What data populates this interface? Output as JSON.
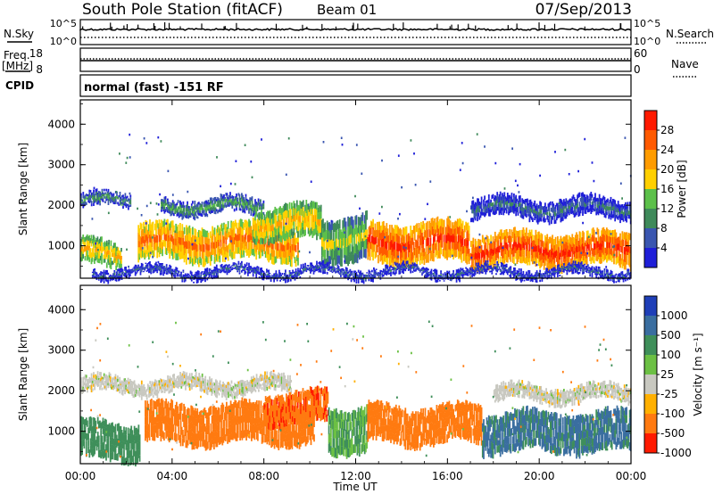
{
  "header": {
    "station": "South Pole Station (fitACF)",
    "beam": "Beam 01",
    "date": "07/Sep/2013"
  },
  "top_panels": {
    "nsky_label": "N.Sky",
    "nsky_ticks": [
      "10^5",
      "10^0"
    ],
    "nsearch_label": "N.Search",
    "nsearch_ticks": [
      "10^5",
      "10^0"
    ],
    "freq_label": "Freq.",
    "freq_unit": "[MHz]",
    "freq_ticks": [
      "18",
      "8"
    ],
    "nave_label": "Nave",
    "nave_ticks": [
      "60",
      "0"
    ],
    "cpid_label": "CPID",
    "cpid_text": "normal (fast) -151 RF"
  },
  "chart_data": [
    {
      "type": "heatmap",
      "name": "power",
      "ylabel": "Slant Range [km]",
      "yticks": [
        "4000",
        "3000",
        "2000",
        "1000"
      ],
      "ylim": [
        200,
        4600
      ],
      "xlim": [
        0,
        24
      ],
      "colorbar_label": "Power [dB]",
      "colorbar_ticks": [
        "28",
        "24",
        "20",
        "16",
        "12",
        "8",
        "4"
      ],
      "colors": [
        "#1f1fd8",
        "#3a56b0",
        "#3f8a5a",
        "#5cc04a",
        "#ffd000",
        "#ff9c00",
        "#ff5a00",
        "#ff1a00"
      ],
      "bands": [
        {
          "t": [
            0,
            2.2
          ],
          "r": [
            1950,
            2250
          ],
          "value": 8
        },
        {
          "t": [
            0,
            1.8
          ],
          "r": [
            500,
            1100
          ],
          "value": 18
        },
        {
          "t": [
            2.5,
            9.5
          ],
          "r": [
            650,
            1500
          ],
          "value": 22
        },
        {
          "t": [
            3.5,
            8.0
          ],
          "r": [
            1800,
            2150
          ],
          "value": 10
        },
        {
          "t": [
            7.5,
            10.5
          ],
          "r": [
            1150,
            1950
          ],
          "value": 18
        },
        {
          "t": [
            10.5,
            12.5
          ],
          "r": [
            600,
            1700
          ],
          "value": 14
        },
        {
          "t": [
            12.5,
            17.0
          ],
          "r": [
            600,
            1550
          ],
          "value": 26
        },
        {
          "t": [
            17.0,
            24.0
          ],
          "r": [
            500,
            1300
          ],
          "value": 26
        },
        {
          "t": [
            17.0,
            24.0
          ],
          "r": [
            1700,
            2150
          ],
          "value": 6
        },
        {
          "t": [
            0.5,
            24.0
          ],
          "r": [
            250,
            450
          ],
          "value": 4
        }
      ]
    },
    {
      "type": "heatmap",
      "name": "velocity",
      "xlabel": "Time UT",
      "xticks": [
        "00:00",
        "04:00",
        "08:00",
        "12:00",
        "16:00",
        "20:00",
        "00:00"
      ],
      "ylabel": "Slant Range [km]",
      "yticks": [
        "4000",
        "3000",
        "2000",
        "1000"
      ],
      "ylim": [
        200,
        4600
      ],
      "xlim": [
        0,
        24
      ],
      "colorbar_label": "Velocity [m s⁻¹]",
      "colorbar_ticks": [
        "1000",
        "500",
        "100",
        "25",
        "-25",
        "-100",
        "-500",
        "-1000"
      ],
      "colors": [
        "#1f3fb8",
        "#3a6ea0",
        "#3f8f5a",
        "#6cc044",
        "#c8c8c0",
        "#ffb000",
        "#ff7a10",
        "#ff1a00"
      ],
      "bands": [
        {
          "t": [
            0,
            9.2
          ],
          "r": [
            1950,
            2300
          ],
          "value": 0
        },
        {
          "t": [
            0,
            2.6
          ],
          "r": [
            300,
            1200
          ],
          "value": 300
        },
        {
          "t": [
            2.8,
            10.2
          ],
          "r": [
            700,
            1650
          ],
          "value": -200
        },
        {
          "t": [
            8.0,
            10.8
          ],
          "r": [
            1200,
            1950
          ],
          "value": -400
        },
        {
          "t": [
            10.8,
            12.5
          ],
          "r": [
            500,
            1600
          ],
          "value": 100
        },
        {
          "t": [
            12.5,
            17.5
          ],
          "r": [
            700,
            1600
          ],
          "value": -300
        },
        {
          "t": [
            17.5,
            24.0
          ],
          "r": [
            500,
            1450
          ],
          "value": 600
        },
        {
          "t": [
            18.0,
            24.0
          ],
          "r": [
            1750,
            2100
          ],
          "value": 0
        }
      ]
    }
  ]
}
